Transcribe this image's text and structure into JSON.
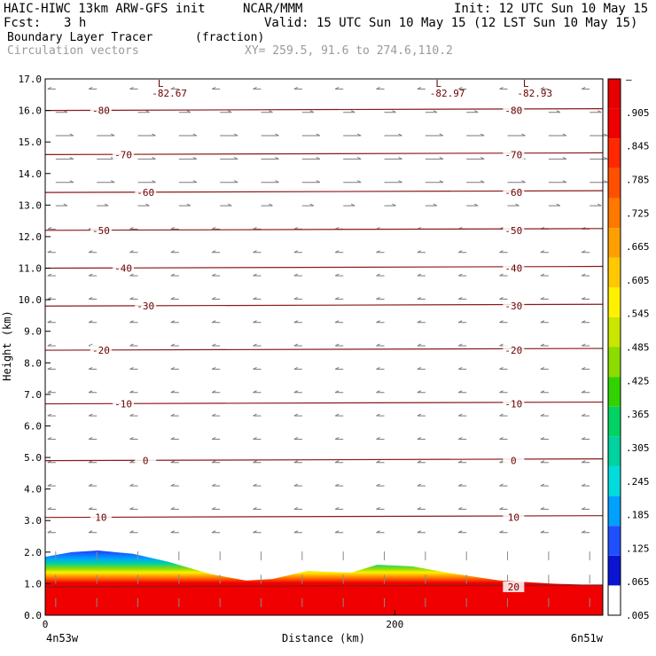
{
  "header": {
    "title": "HAIC-HIWC 13km ARW-GFS init",
    "org": "NCAR/MMM",
    "init": "Init: 12 UTC Sun 10 May 15",
    "fcst_label": "Fcst:",
    "fcst_value": "3 h",
    "valid": "Valid: 15 UTC Sun 10 May 15 (12 LST Sun 10 May 15)",
    "field_name": "Boundary Layer Tracer",
    "field_units": "(fraction)",
    "vector_label": "Circulation vectors",
    "xy_label": "XY= 259.5, 91.6 to 274.6,110.2"
  },
  "chart_data": {
    "type": "heatmap",
    "xlabel": "Distance (km)",
    "ylabel": "Height (km)",
    "xlim": [
      0,
      319
    ],
    "ylim": [
      0,
      17
    ],
    "x_ticks": [
      0,
      200
    ],
    "y_ticks": [
      0.0,
      1.0,
      2.0,
      3.0,
      4.0,
      5.0,
      6.0,
      7.0,
      8.0,
      9.0,
      10.0,
      11.0,
      12.0,
      13.0,
      14.0,
      15.0,
      16.0,
      17.0
    ],
    "x_endpoints": {
      "left": "4n53w",
      "right": "6n51w"
    },
    "colorbar": {
      "labels": [
        ".005",
        ".065",
        ".125",
        ".185",
        ".245",
        ".305",
        ".365",
        ".425",
        ".485",
        ".545",
        ".605",
        ".665",
        ".725",
        ".785",
        ".845",
        ".905",
        "–"
      ],
      "colors": [
        "#ffffff",
        "#0a14d2",
        "#1e50ff",
        "#00a0ff",
        "#00dcdc",
        "#00d2a0",
        "#00d264",
        "#32d200",
        "#8cdc00",
        "#c8e600",
        "#fff000",
        "#ffc800",
        "#ffa000",
        "#ff7800",
        "#ff5000",
        "#ff2800",
        "#f00000",
        "#e60000"
      ]
    },
    "isotherms": [
      {
        "label": "-80",
        "height_km": 16.0
      },
      {
        "label": "-70",
        "height_km": 14.6
      },
      {
        "label": "-60",
        "height_km": 13.4
      },
      {
        "label": "-50",
        "height_km": 12.2
      },
      {
        "label": "-40",
        "height_km": 11.0
      },
      {
        "label": "-30",
        "height_km": 9.8
      },
      {
        "label": "-20",
        "height_km": 8.4
      },
      {
        "label": "-10",
        "height_km": 6.7
      },
      {
        "label": "0",
        "height_km": 4.9
      },
      {
        "label": "10",
        "height_km": 3.1
      },
      {
        "label": "20",
        "height_km": 0.9
      }
    ],
    "lows": [
      {
        "label": "L",
        "value": "-82.67",
        "x_km": 66
      },
      {
        "label": "L",
        "value": "-82.97",
        "x_km": 225
      },
      {
        "label": "L",
        "value": "-82.93",
        "x_km": 275
      }
    ],
    "bl_top_km": [
      {
        "x": 0,
        "top": 1.85
      },
      {
        "x": 15,
        "top": 2.0
      },
      {
        "x": 30,
        "top": 2.05
      },
      {
        "x": 50,
        "top": 1.95
      },
      {
        "x": 70,
        "top": 1.7
      },
      {
        "x": 95,
        "top": 1.3
      },
      {
        "x": 115,
        "top": 1.1
      },
      {
        "x": 130,
        "top": 1.15
      },
      {
        "x": 150,
        "top": 1.4
      },
      {
        "x": 175,
        "top": 1.35
      },
      {
        "x": 190,
        "top": 1.6
      },
      {
        "x": 210,
        "top": 1.55
      },
      {
        "x": 230,
        "top": 1.35
      },
      {
        "x": 260,
        "top": 1.1
      },
      {
        "x": 290,
        "top": 1.0
      },
      {
        "x": 319,
        "top": 0.95
      }
    ]
  }
}
